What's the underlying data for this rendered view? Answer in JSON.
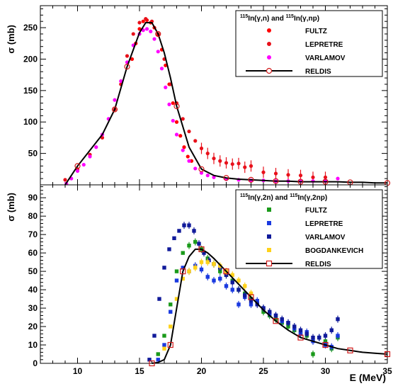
{
  "chart_data": [
    {
      "type": "scatter",
      "title": "",
      "ylabel": "σ (mb)",
      "xlabel": "",
      "xlim": [
        7,
        35
      ],
      "ylim": [
        0,
        285
      ],
      "xticks": [
        "10",
        "15",
        "20",
        "25",
        "30",
        "35"
      ],
      "yticks": [
        "50",
        "100",
        "150",
        "200",
        "250"
      ],
      "legend_position": "top-right",
      "legend_title": "115In(γ,n) and 115In(γ,np)",
      "series": [
        {
          "name": "FULTZ",
          "marker": "dot",
          "color": "#ff0000",
          "x": [
            14.4,
            14.7,
            15.0,
            15.3,
            15.6,
            15.9,
            16.2,
            16.5,
            16.8,
            17.1,
            17.4,
            17.7,
            18.0,
            18.3,
            18.6,
            18.9,
            19.2
          ],
          "y": [
            200,
            225,
            248,
            260,
            262,
            258,
            250,
            238,
            215,
            190,
            160,
            130,
            100,
            78,
            60,
            45,
            38
          ]
        },
        {
          "name": "LEPRETRE",
          "marker": "dot",
          "color": "#e8101a",
          "x": [
            9.0,
            10.0,
            11.0,
            12.0,
            13.0,
            13.5,
            14.0,
            14.5,
            15.0,
            15.5,
            16.0,
            16.5,
            17.0,
            17.5,
            18.0,
            18.5,
            19.0,
            19.5,
            20.0,
            20.5,
            21.0,
            21.5,
            22.0,
            22.5,
            23.0,
            23.5,
            24.0,
            25.0,
            26.0,
            27.0,
            28.0,
            29.0,
            30.0
          ],
          "y": [
            8,
            25,
            48,
            75,
            120,
            160,
            205,
            240,
            258,
            264,
            260,
            240,
            200,
            160,
            130,
            105,
            85,
            70,
            58,
            50,
            42,
            38,
            35,
            33,
            34,
            28,
            30,
            20,
            18,
            16,
            15,
            12,
            12
          ]
        },
        {
          "name": "VARLAMOV",
          "marker": "dot",
          "color": "#ff00ff",
          "x": [
            9.1,
            9.5,
            10.0,
            10.5,
            11.0,
            11.5,
            12.0,
            12.5,
            13.0,
            13.5,
            14.0,
            14.5,
            15.0,
            15.3,
            15.6,
            15.9,
            16.2,
            16.5,
            16.8,
            17.1,
            17.4,
            17.7,
            18.0,
            18.5,
            19.0,
            19.5,
            20.0,
            20.5,
            21.0,
            22.0,
            23.0,
            24.0,
            25.0,
            26.0,
            27.0,
            28.0,
            29.0,
            30.0,
            31.0
          ],
          "y": [
            2,
            10,
            22,
            32,
            45,
            60,
            80,
            105,
            135,
            165,
            195,
            222,
            240,
            246,
            248,
            244,
            232,
            212,
            185,
            155,
            128,
            102,
            80,
            55,
            38,
            26,
            19,
            15,
            12,
            9,
            8,
            7,
            7,
            6,
            6,
            6,
            6,
            6,
            10
          ]
        },
        {
          "name": "RELDIS",
          "marker": "line-with-open-circles",
          "color": "#000000",
          "x": [
            9.0,
            10.0,
            11.0,
            12.0,
            13.0,
            14.0,
            15.0,
            15.5,
            16.0,
            16.5,
            17.0,
            17.5,
            18.0,
            19.0,
            20.0,
            21.0,
            22.0,
            23.0,
            24.0,
            25.0,
            26.0,
            27.0,
            28.0,
            29.0,
            30.0,
            31.0,
            32.0,
            33.0,
            34.0,
            35.0
          ],
          "y": [
            0,
            30,
            55,
            80,
            120,
            188,
            242,
            258,
            258,
            240,
            210,
            170,
            125,
            60,
            25,
            15,
            11,
            9,
            8,
            7,
            6,
            6,
            5,
            5,
            5,
            5,
            4,
            4,
            3,
            3
          ],
          "open_circle_x": [
            10.0,
            13.0,
            14.0,
            16.5,
            18.0,
            20.0,
            22.0,
            24.0,
            26.0,
            28.0,
            30.0,
            32.0,
            35.0
          ]
        }
      ]
    },
    {
      "type": "scatter",
      "title": "",
      "ylabel": "σ (mb)",
      "xlabel": "E (MeV)",
      "xlim": [
        7,
        35
      ],
      "ylim": [
        0,
        97
      ],
      "xticks": [
        "10",
        "15",
        "20",
        "25",
        "30",
        "35"
      ],
      "yticks": [
        "0",
        "10",
        "20",
        "30",
        "40",
        "50",
        "60",
        "70",
        "80",
        "90"
      ],
      "legend_position": "top-right",
      "legend_title": "115In(γ,2n) and 115In(γ,2np)",
      "series": [
        {
          "name": "FULTZ",
          "marker": "square",
          "color": "#1a9a1a",
          "x": [
            16.5,
            17.0,
            17.5,
            18.0,
            18.5,
            19.0,
            19.5,
            20.0,
            20.5,
            21.0,
            21.5,
            22.0,
            22.5,
            23.0,
            23.5,
            24.0,
            24.5,
            25.0,
            25.5,
            26.0,
            26.5,
            27.0,
            27.5,
            28.0,
            28.5,
            29.0,
            29.5,
            30.0,
            30.5,
            31.0
          ],
          "y": [
            5,
            15,
            32,
            50,
            60,
            64,
            66,
            62,
            57,
            54,
            50,
            48,
            45,
            40,
            38,
            35,
            33,
            28,
            26,
            24,
            22,
            20,
            18,
            16,
            15,
            5,
            14,
            12,
            8,
            14
          ]
        },
        {
          "name": "LEPRETRE",
          "marker": "square",
          "color": "#1a3ae0",
          "x": [
            16.5,
            17.0,
            17.5,
            18.0,
            18.5,
            19.0,
            19.5,
            20.0,
            20.5,
            21.0,
            21.5,
            22.0,
            22.5,
            23.0,
            23.5,
            24.0,
            24.5,
            25.0,
            25.5,
            26.0,
            26.5,
            27.0,
            27.5,
            28.0,
            28.5,
            29.0,
            29.5,
            30.0,
            30.5,
            31.0
          ],
          "y": [
            2,
            10,
            28,
            45,
            52,
            50,
            53,
            51,
            47,
            45,
            46,
            42,
            40,
            32,
            36,
            32,
            34,
            30,
            27,
            26,
            23,
            22,
            19,
            16,
            17,
            12,
            14,
            10,
            9,
            15
          ]
        },
        {
          "name": "VARLAMOV",
          "marker": "square",
          "color": "#101a9a",
          "x": [
            15.8,
            16.2,
            16.6,
            17.0,
            17.4,
            17.8,
            18.2,
            18.6,
            19.0,
            19.4,
            19.8,
            20.2,
            20.6,
            21.0,
            21.5,
            22.0,
            22.5,
            23.0,
            23.5,
            24.0,
            24.5,
            25.0,
            25.5,
            26.0,
            26.5,
            27.0,
            27.5,
            28.0,
            28.5,
            29.0,
            29.5,
            30.0,
            30.5,
            31.0
          ],
          "y": [
            2,
            15,
            35,
            52,
            62,
            68,
            72,
            75,
            75,
            72,
            65,
            60,
            56,
            54,
            52,
            48,
            44,
            40,
            37,
            34,
            32,
            30,
            28,
            26,
            24,
            22,
            20,
            18,
            16,
            14,
            14,
            15,
            18,
            24
          ]
        },
        {
          "name": "BOGDANKEVICH",
          "marker": "square",
          "color": "#ffd21a",
          "x": [
            17.0,
            17.5,
            18.0,
            18.5,
            19.0,
            19.5,
            20.0,
            20.5,
            21.0,
            21.5,
            22.0,
            22.5,
            23.0,
            23.5,
            24.0
          ],
          "y": [
            8,
            20,
            35,
            46,
            50,
            52,
            55,
            55,
            54,
            53,
            50,
            48,
            45,
            42,
            38
          ]
        },
        {
          "name": "RELDIS",
          "marker": "line-with-open-squares",
          "color": "#000000",
          "x": [
            16.0,
            16.5,
            17.0,
            17.5,
            18.0,
            18.5,
            19.0,
            19.5,
            20.0,
            20.5,
            21.0,
            22.0,
            23.0,
            24.0,
            25.0,
            26.0,
            27.0,
            28.0,
            29.0,
            30.0,
            31.0,
            32.0,
            33.0,
            34.0,
            35.0
          ],
          "y": [
            0,
            0.5,
            2,
            10,
            30,
            50,
            58,
            62,
            62,
            60,
            57,
            50,
            43,
            36,
            29,
            23,
            18,
            14,
            12,
            10,
            8,
            7,
            6,
            5.5,
            5
          ],
          "open_square_x": [
            16.0,
            17.5,
            18.5,
            20.0,
            22.0,
            24.0,
            26.0,
            28.0,
            30.0,
            32.0,
            35.0
          ]
        }
      ]
    }
  ]
}
